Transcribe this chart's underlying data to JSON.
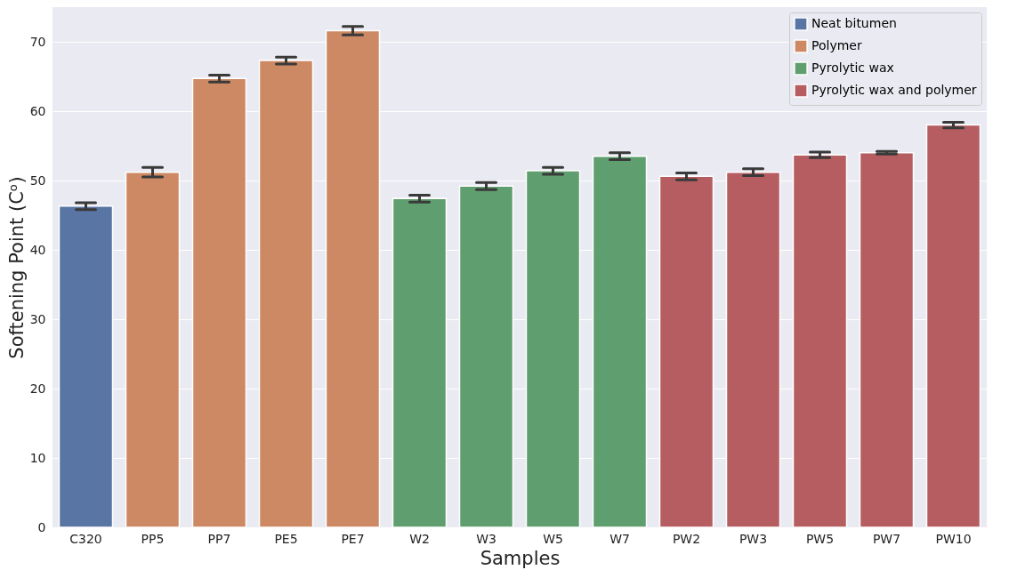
{
  "chart_data": {
    "type": "bar",
    "xlabel": "Samples",
    "ylabel": "Softening Point (Cᵒ)",
    "categories": [
      "C320",
      "PP5",
      "PP7",
      "PE5",
      "PE7",
      "W2",
      "W3",
      "W5",
      "W7",
      "PW2",
      "PW3",
      "PW5",
      "PW7",
      "PW10"
    ],
    "series": [
      {
        "name": "Neat bitumen",
        "color": "#5875a4",
        "values": [
          46.3,
          null,
          null,
          null,
          null,
          null,
          null,
          null,
          null,
          null,
          null,
          null,
          null,
          null
        ],
        "errors": [
          0.5,
          null,
          null,
          null,
          null,
          null,
          null,
          null,
          null,
          null,
          null,
          null,
          null,
          null
        ]
      },
      {
        "name": "Polymer",
        "color": "#cc8963",
        "values": [
          null,
          51.2,
          64.7,
          67.3,
          71.6,
          null,
          null,
          null,
          null,
          null,
          null,
          null,
          null,
          null
        ],
        "errors": [
          null,
          0.7,
          0.5,
          0.5,
          0.6,
          null,
          null,
          null,
          null,
          null,
          null,
          null,
          null,
          null
        ]
      },
      {
        "name": "Pyrolytic wax",
        "color": "#5f9e6e",
        "values": [
          null,
          null,
          null,
          null,
          null,
          47.4,
          49.2,
          51.4,
          53.5,
          null,
          null,
          null,
          null,
          null
        ],
        "errors": [
          null,
          null,
          null,
          null,
          null,
          0.5,
          0.5,
          0.5,
          0.5,
          null,
          null,
          null,
          null,
          null
        ]
      },
      {
        "name": "Pyrolytic wax and polymer",
        "color": "#b55d60",
        "values": [
          null,
          null,
          null,
          null,
          null,
          null,
          null,
          null,
          null,
          50.6,
          51.2,
          53.7,
          54.0,
          58.0
        ],
        "errors": [
          null,
          null,
          null,
          null,
          null,
          null,
          null,
          null,
          null,
          0.5,
          0.5,
          0.4,
          0.2,
          0.4
        ]
      }
    ],
    "ylim": [
      0,
      75
    ],
    "yticks": [
      0,
      10,
      20,
      30,
      40,
      50,
      60,
      70
    ],
    "grid": "y",
    "legend": "top right"
  }
}
